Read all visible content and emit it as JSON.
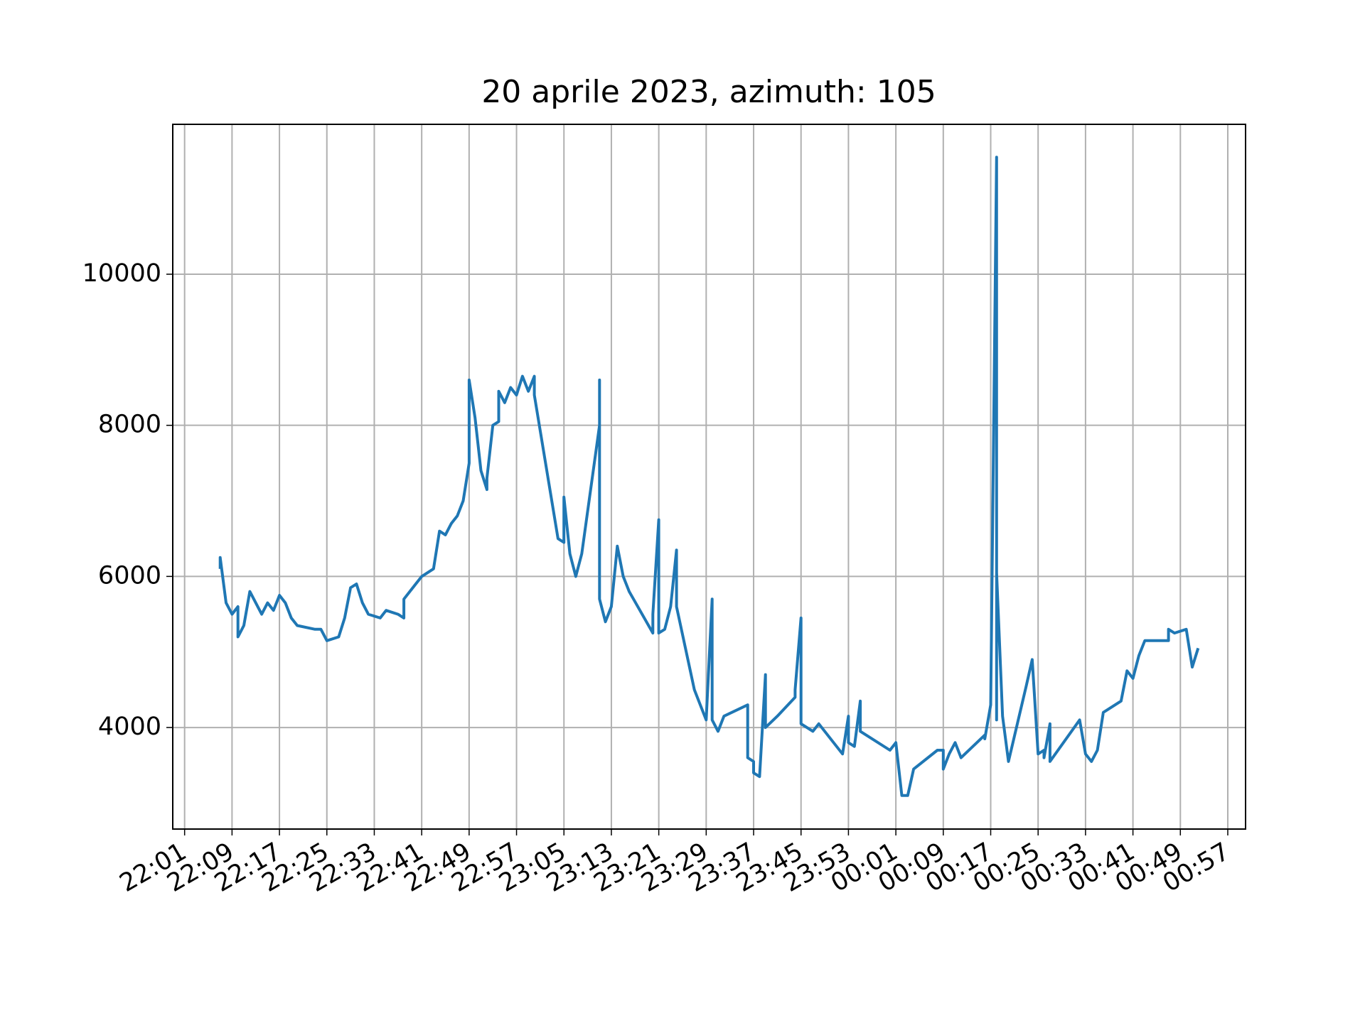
{
  "chart_data": {
    "type": "line",
    "title": "20 aprile 2023, azimuth: 105",
    "color": "#1f77b4",
    "grid": true,
    "xlim": [
      "21:59",
      "01:00"
    ],
    "xticks": [
      "22:01",
      "22:09",
      "22:17",
      "22:25",
      "22:33",
      "22:41",
      "22:49",
      "22:57",
      "23:05",
      "23:13",
      "23:21",
      "23:29",
      "23:37",
      "23:45",
      "23:53",
      "00:01",
      "00:09",
      "00:17",
      "00:25",
      "00:33",
      "00:41",
      "00:49",
      "00:57"
    ],
    "ylim": [
      2656,
      11984
    ],
    "yticks": [
      4000,
      6000,
      8000,
      10000
    ],
    "x": [
      "22:07",
      "22:07",
      "22:08",
      "22:09",
      "22:10",
      "22:10",
      "22:11",
      "22:12",
      "22:14",
      "22:15",
      "22:16",
      "22:17",
      "22:18",
      "22:19",
      "22:20",
      "22:23",
      "22:24",
      "22:25",
      "22:27",
      "22:28",
      "22:29",
      "22:30",
      "22:31",
      "22:32",
      "22:34",
      "22:35",
      "22:37",
      "22:38",
      "22:38",
      "22:40",
      "22:41",
      "22:43",
      "22:44",
      "22:45",
      "22:46",
      "22:47",
      "22:48",
      "22:49",
      "22:49",
      "22:50",
      "22:51",
      "22:52",
      "22:52",
      "22:53",
      "22:54",
      "22:54",
      "22:55",
      "22:56",
      "22:57",
      "22:58",
      "22:59",
      "23:00",
      "23:00",
      "23:04",
      "23:05",
      "23:05",
      "23:06",
      "23:07",
      "23:08",
      "23:08",
      "23:11",
      "23:11",
      "23:11",
      "23:12",
      "23:13",
      "23:13",
      "23:14",
      "23:15",
      "23:16",
      "23:20",
      "23:20",
      "23:21",
      "23:21",
      "23:22",
      "23:23",
      "23:24",
      "23:24",
      "23:27",
      "23:28",
      "23:29",
      "23:30",
      "23:30",
      "23:31",
      "23:32",
      "23:36",
      "23:36",
      "23:37",
      "23:37",
      "23:38",
      "23:39",
      "23:39",
      "23:41",
      "23:44",
      "23:44",
      "23:45",
      "23:45",
      "23:47",
      "23:48",
      "23:52",
      "23:53",
      "23:53",
      "23:54",
      "23:55",
      "23:55",
      "00:00",
      "00:01",
      "00:02",
      "00:03",
      "00:04",
      "00:08",
      "00:09",
      "00:09",
      "00:10",
      "00:11",
      "00:12",
      "00:16",
      "00:16",
      "00:17",
      "00:18",
      "00:18",
      "00:18",
      "00:19",
      "00:20",
      "00:23",
      "00:24",
      "00:25",
      "00:26",
      "00:26",
      "00:27",
      "00:27",
      "00:32",
      "00:33",
      "00:34",
      "00:35",
      "00:36",
      "00:39",
      "00:40",
      "00:41",
      "00:42",
      "00:43",
      "00:47",
      "00:47",
      "00:48",
      "00:50",
      "00:51",
      "00:52"
    ],
    "values": [
      6100,
      6250,
      5650,
      5500,
      5600,
      5200,
      5350,
      5800,
      5500,
      5650,
      5550,
      5750,
      5650,
      5450,
      5350,
      5300,
      5300,
      5150,
      5200,
      5450,
      5850,
      5900,
      5650,
      5500,
      5450,
      5550,
      5500,
      5450,
      5700,
      5900,
      6000,
      6100,
      6600,
      6550,
      6700,
      6800,
      7000,
      7500,
      8600,
      8100,
      7400,
      7150,
      7300,
      8000,
      8050,
      8450,
      8300,
      8500,
      8400,
      8650,
      8450,
      8650,
      8400,
      6500,
      6450,
      7050,
      6300,
      6000,
      6300,
      6300,
      8000,
      8600,
      5700,
      5400,
      5600,
      5600,
      6400,
      6000,
      5800,
      5250,
      5500,
      6750,
      5250,
      5300,
      5600,
      6350,
      5600,
      4500,
      4300,
      4100,
      5700,
      4100,
      3950,
      4150,
      4300,
      3600,
      3550,
      3400,
      3350,
      4700,
      4000,
      4150,
      4400,
      4500,
      5450,
      4050,
      3950,
      4050,
      3650,
      4150,
      3800,
      3750,
      4350,
      3950,
      3700,
      3800,
      3100,
      3100,
      3450,
      3700,
      3700,
      3450,
      3650,
      3800,
      3600,
      3900,
      3850,
      4300,
      11550,
      4100,
      6050,
      4150,
      3550,
      4550,
      4900,
      3650,
      3700,
      3600,
      4050,
      3550,
      4100,
      3650,
      3550,
      3700,
      4200,
      4350,
      4750,
      4650,
      4950,
      5150,
      5150,
      5300,
      5250,
      5300,
      4800,
      5050
    ]
  }
}
